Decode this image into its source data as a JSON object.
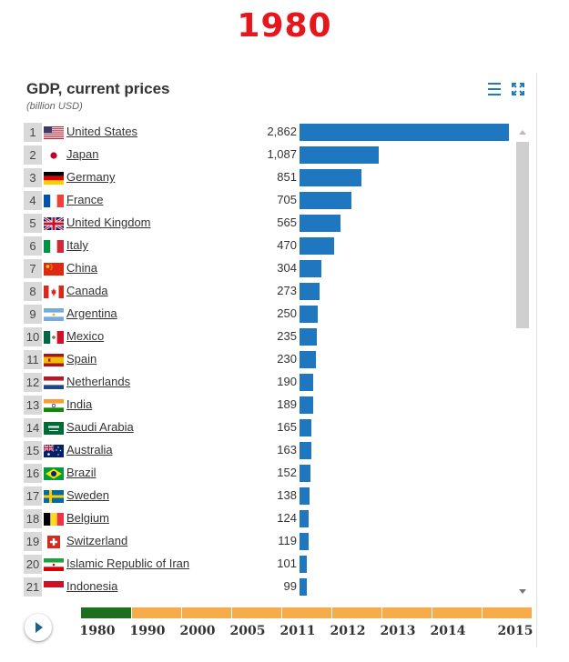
{
  "page": {
    "year_heading": "1980"
  },
  "chart": {
    "title": "GDP, current prices",
    "subtitle": "(billion USD)"
  },
  "colors": {
    "bar": "#1f77c0",
    "heading": "#e5161c",
    "timeline_past": "#1e6e1e",
    "timeline_future": "#f6ac4a"
  },
  "icons": {
    "menu": "menu-icon",
    "expand": "expand-icon",
    "play": "play-icon"
  },
  "chart_data": {
    "type": "bar",
    "orientation": "horizontal",
    "title": "GDP, current prices",
    "subtitle": "(billion USD)",
    "xlim": [
      0,
      2862
    ],
    "ranks": [
      "1",
      "2",
      "3",
      "4",
      "5",
      "6",
      "7",
      "8",
      "9",
      "10",
      "11",
      "12",
      "13",
      "14",
      "15",
      "16",
      "17",
      "18",
      "19",
      "20",
      "21"
    ],
    "categories": [
      "United States",
      "Japan",
      "Germany",
      "France",
      "United Kingdom",
      "Italy",
      "China",
      "Canada",
      "Argentina",
      "Mexico",
      "Spain",
      "Netherlands",
      "India",
      "Saudi Arabia",
      "Australia",
      "Brazil",
      "Sweden",
      "Belgium",
      "Switzerland",
      "Islamic Republic of Iran",
      "Indonesia"
    ],
    "values": [
      2862,
      1087,
      851,
      705,
      565,
      470,
      304,
      273,
      250,
      235,
      230,
      190,
      189,
      165,
      163,
      152,
      138,
      124,
      119,
      101,
      99
    ],
    "value_labels": [
      "2,862",
      "1,087",
      "851",
      "705",
      "565",
      "470",
      "304",
      "273",
      "250",
      "235",
      "230",
      "190",
      "189",
      "165",
      "163",
      "152",
      "138",
      "124",
      "119",
      "101",
      "99"
    ],
    "flags": [
      "us",
      "jp",
      "de",
      "fr",
      "gb",
      "it",
      "cn",
      "ca",
      "ar",
      "mx",
      "es",
      "nl",
      "in",
      "sa",
      "au",
      "br",
      "se",
      "be",
      "ch",
      "ir",
      "id"
    ]
  },
  "timeline": {
    "labels": [
      "1980",
      "1990",
      "2000",
      "2005",
      "2011",
      "2012",
      "2013",
      "2014",
      "2015"
    ],
    "current": "1980"
  }
}
